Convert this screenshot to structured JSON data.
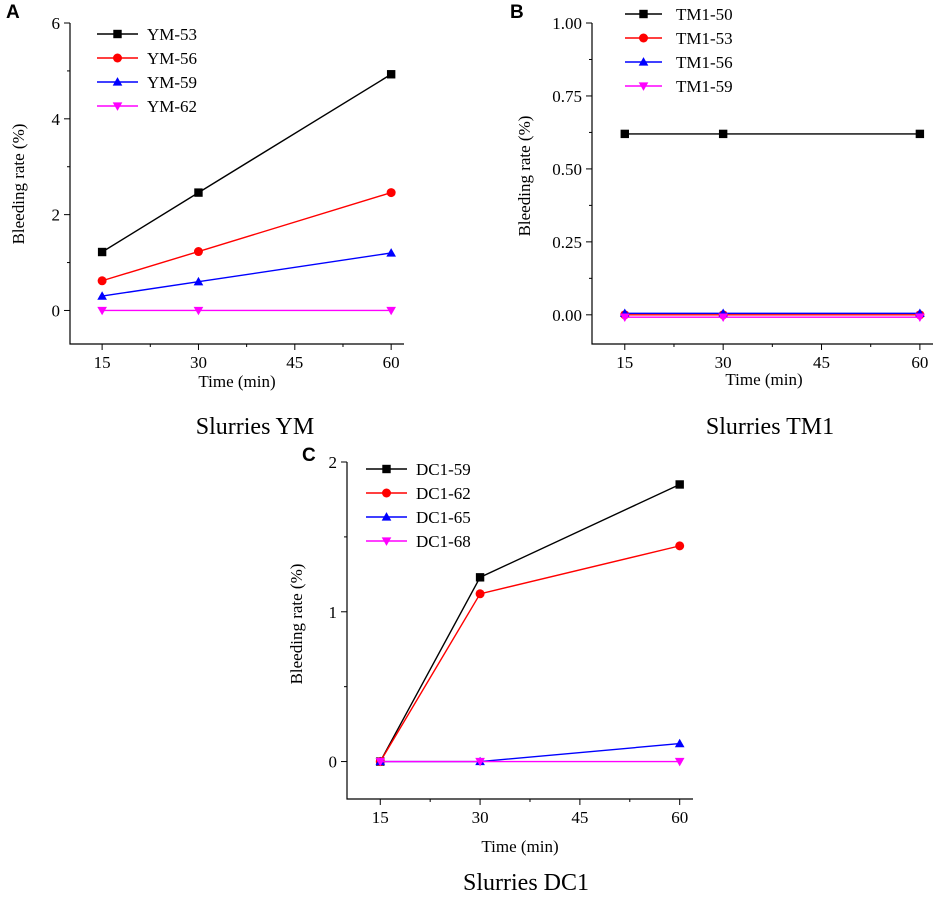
{
  "chart_data": [
    {
      "type": "line",
      "panel": "A",
      "caption": "Slurries YM",
      "xlabel": "Time (min)",
      "ylabel": "Bleeding rate (%)",
      "x": [
        15,
        30,
        60
      ],
      "xticks": [
        15,
        30,
        45,
        60
      ],
      "xtick_labels": [
        "15",
        "30",
        "45",
        "60"
      ],
      "xlim": [
        10,
        62
      ],
      "ylim": [
        -0.7,
        6
      ],
      "yticks": [
        0,
        2,
        4,
        6
      ],
      "ytick_labels": [
        "0",
        "2",
        "4",
        "6"
      ],
      "legend_position": "top-left",
      "series": [
        {
          "name": "YM-53",
          "values": [
            1.22,
            2.46,
            4.93
          ],
          "color": "#000000",
          "marker": "square"
        },
        {
          "name": "YM-56",
          "values": [
            0.62,
            1.23,
            2.46
          ],
          "color": "#ff0000",
          "marker": "circle"
        },
        {
          "name": "YM-59",
          "values": [
            0.3,
            0.6,
            1.2
          ],
          "color": "#0000ff",
          "marker": "triangle-up"
        },
        {
          "name": "YM-62",
          "values": [
            0,
            0,
            0
          ],
          "color": "#ff00ff",
          "marker": "triangle-down"
        }
      ]
    },
    {
      "type": "line",
      "panel": "B",
      "caption": "Slurries TM1",
      "xlabel": "Time (min)",
      "ylabel": "Bleeding rate (%)",
      "x": [
        15,
        30,
        60
      ],
      "xticks": [
        15,
        30,
        45,
        60
      ],
      "xtick_labels": [
        "15",
        "30",
        "45",
        "60"
      ],
      "xlim": [
        10,
        62
      ],
      "ylim": [
        -0.1,
        1.0
      ],
      "yticks": [
        0,
        0.25,
        0.5,
        0.75,
        1.0
      ],
      "ytick_labels": [
        "0.00",
        "0.25",
        "0.50",
        "0.75",
        "1.00"
      ],
      "legend_position": "top-left",
      "series": [
        {
          "name": "TM1-50",
          "values": [
            0.62,
            0.62,
            0.62
          ],
          "color": "#000000",
          "marker": "square"
        },
        {
          "name": "TM1-53",
          "values": [
            0,
            0,
            0
          ],
          "color": "#ff0000",
          "marker": "circle"
        },
        {
          "name": "TM1-56",
          "values": [
            0.005,
            0.005,
            0.005
          ],
          "color": "#0000ff",
          "marker": "triangle-up"
        },
        {
          "name": "TM1-59",
          "values": [
            -0.008,
            -0.008,
            -0.008
          ],
          "color": "#ff00ff",
          "marker": "triangle-down"
        }
      ]
    },
    {
      "type": "line",
      "panel": "C",
      "caption": "Slurries DC1",
      "xlabel": "Time (min)",
      "ylabel": "Bleeding rate (%)",
      "x": [
        15,
        30,
        60
      ],
      "xticks": [
        15,
        30,
        45,
        60
      ],
      "xtick_labels": [
        "15",
        "30",
        "45",
        "60"
      ],
      "xlim": [
        10,
        62
      ],
      "ylim": [
        -0.25,
        2.0
      ],
      "yticks": [
        0,
        1,
        2
      ],
      "ytick_labels": [
        "0",
        "1",
        "2"
      ],
      "legend_position": "top-left",
      "series": [
        {
          "name": "DC1-59",
          "values": [
            0,
            1.23,
            1.85
          ],
          "color": "#000000",
          "marker": "square"
        },
        {
          "name": "DC1-62",
          "values": [
            0,
            1.12,
            1.44
          ],
          "color": "#ff0000",
          "marker": "circle"
        },
        {
          "name": "DC1-65",
          "values": [
            0,
            0,
            0.12
          ],
          "color": "#0000ff",
          "marker": "triangle-up"
        },
        {
          "name": "DC1-68",
          "values": [
            0,
            0,
            0
          ],
          "color": "#ff00ff",
          "marker": "triangle-down"
        }
      ]
    }
  ]
}
